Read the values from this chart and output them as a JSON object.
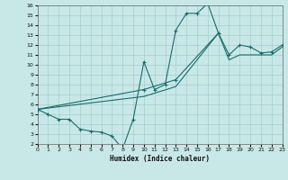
{
  "xlabel": "Humidex (Indice chaleur)",
  "xlim": [
    0,
    23
  ],
  "ylim": [
    2,
    16
  ],
  "xticks": [
    0,
    1,
    2,
    3,
    4,
    5,
    6,
    7,
    8,
    9,
    10,
    11,
    12,
    13,
    14,
    15,
    16,
    17,
    18,
    19,
    20,
    21,
    22,
    23
  ],
  "yticks": [
    2,
    3,
    4,
    5,
    6,
    7,
    8,
    9,
    10,
    11,
    12,
    13,
    14,
    15,
    16
  ],
  "bg_color": "#c8e8e8",
  "grid_color": "#a8cccc",
  "line_color": "#1a6b6b",
  "curve1_x": [
    0,
    1,
    2,
    3,
    4,
    5,
    6,
    7,
    8,
    9,
    10,
    11,
    12,
    13,
    14,
    15,
    16,
    17
  ],
  "curve1_y": [
    5.5,
    5.0,
    4.5,
    4.5,
    3.5,
    3.3,
    3.2,
    2.8,
    1.5,
    4.5,
    10.3,
    7.5,
    8.0,
    13.5,
    15.2,
    15.2,
    16.2,
    13.2
  ],
  "curve2_x": [
    0,
    10,
    13,
    17,
    18,
    19,
    20,
    21,
    22,
    23
  ],
  "curve2_y": [
    5.5,
    7.5,
    8.5,
    13.2,
    11.0,
    12.0,
    11.8,
    11.2,
    11.3,
    12.0
  ],
  "curve3_x": [
    0,
    10,
    13,
    17,
    18,
    19,
    20,
    21,
    22,
    23
  ],
  "curve3_y": [
    5.5,
    6.8,
    7.8,
    13.2,
    10.5,
    11.0,
    11.0,
    11.0,
    11.0,
    11.8
  ]
}
